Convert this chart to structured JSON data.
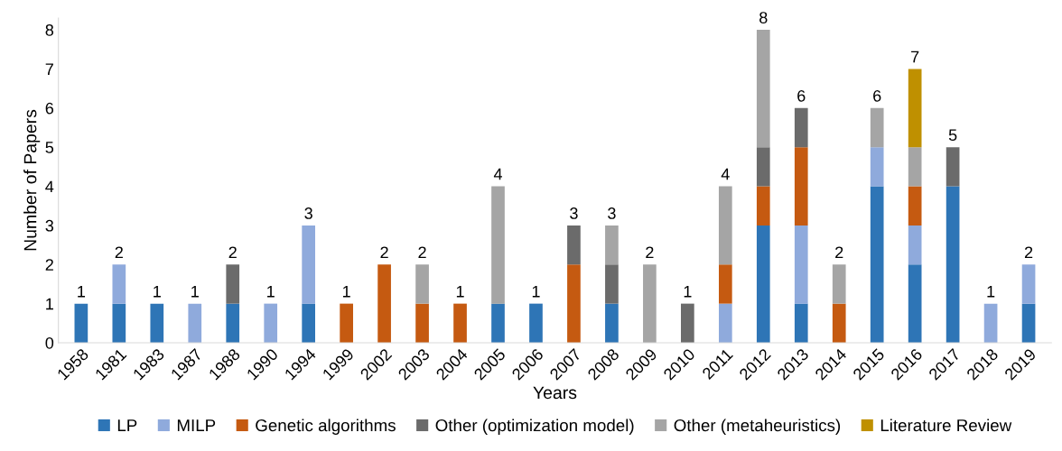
{
  "chart_data": {
    "type": "bar",
    "stacked": true,
    "xlabel": "Years",
    "ylabel": "Number of Papers",
    "categories": [
      "1958",
      "1981",
      "1983",
      "1987",
      "1988",
      "1990",
      "1994",
      "1999",
      "2002",
      "2003",
      "2004",
      "2005",
      "2006",
      "2007",
      "2008",
      "2009",
      "2010",
      "2011",
      "2012",
      "2013",
      "2014",
      "2015",
      "2016",
      "2017",
      "2018",
      "2019"
    ],
    "series": [
      {
        "name": "LP",
        "color": "#2e75b6",
        "values": [
          1,
          1,
          1,
          0,
          1,
          0,
          1,
          0,
          0,
          0,
          0,
          1,
          1,
          0,
          1,
          0,
          0,
          0,
          3,
          1,
          0,
          4,
          2,
          4,
          0,
          1
        ]
      },
      {
        "name": "MILP",
        "color": "#8faadc",
        "values": [
          0,
          1,
          0,
          1,
          0,
          1,
          2,
          0,
          0,
          0,
          0,
          0,
          0,
          0,
          0,
          0,
          0,
          1,
          0,
          2,
          0,
          1,
          1,
          0,
          1,
          1
        ]
      },
      {
        "name": "Genetic algorithms",
        "color": "#c55a11",
        "values": [
          0,
          0,
          0,
          0,
          0,
          0,
          0,
          1,
          2,
          1,
          1,
          0,
          0,
          2,
          0,
          0,
          0,
          1,
          1,
          2,
          1,
          0,
          1,
          0,
          0,
          0
        ]
      },
      {
        "name": "Other (optimization model)",
        "color": "#6b6b6b",
        "values": [
          0,
          0,
          0,
          0,
          1,
          0,
          0,
          0,
          0,
          0,
          0,
          0,
          0,
          1,
          1,
          0,
          1,
          0,
          1,
          1,
          0,
          0,
          0,
          1,
          0,
          0
        ]
      },
      {
        "name": "Other (metaheuristics)",
        "color": "#a5a5a5",
        "values": [
          0,
          0,
          0,
          0,
          0,
          0,
          0,
          0,
          0,
          1,
          0,
          3,
          0,
          0,
          1,
          2,
          0,
          2,
          3,
          0,
          1,
          1,
          1,
          0,
          0,
          0
        ]
      },
      {
        "name": "Literature Review",
        "color": "#bf9000",
        "values": [
          0,
          0,
          0,
          0,
          0,
          0,
          0,
          0,
          0,
          0,
          0,
          0,
          0,
          0,
          0,
          0,
          0,
          0,
          0,
          0,
          0,
          0,
          2,
          0,
          0,
          0
        ]
      }
    ],
    "totals": [
      "1",
      "2",
      "1",
      "1",
      "2",
      "1",
      "3",
      "1",
      "2",
      "2",
      "1",
      "4",
      "1",
      "3",
      "3",
      "2",
      "1",
      "4",
      "8",
      "6",
      "2",
      "6",
      "7",
      "5",
      "1",
      "2"
    ],
    "ylim": [
      0,
      8.3
    ],
    "yticks": [
      0,
      1,
      2,
      3,
      4,
      5,
      6,
      7,
      8
    ],
    "grid": false,
    "legend": "bottom"
  }
}
